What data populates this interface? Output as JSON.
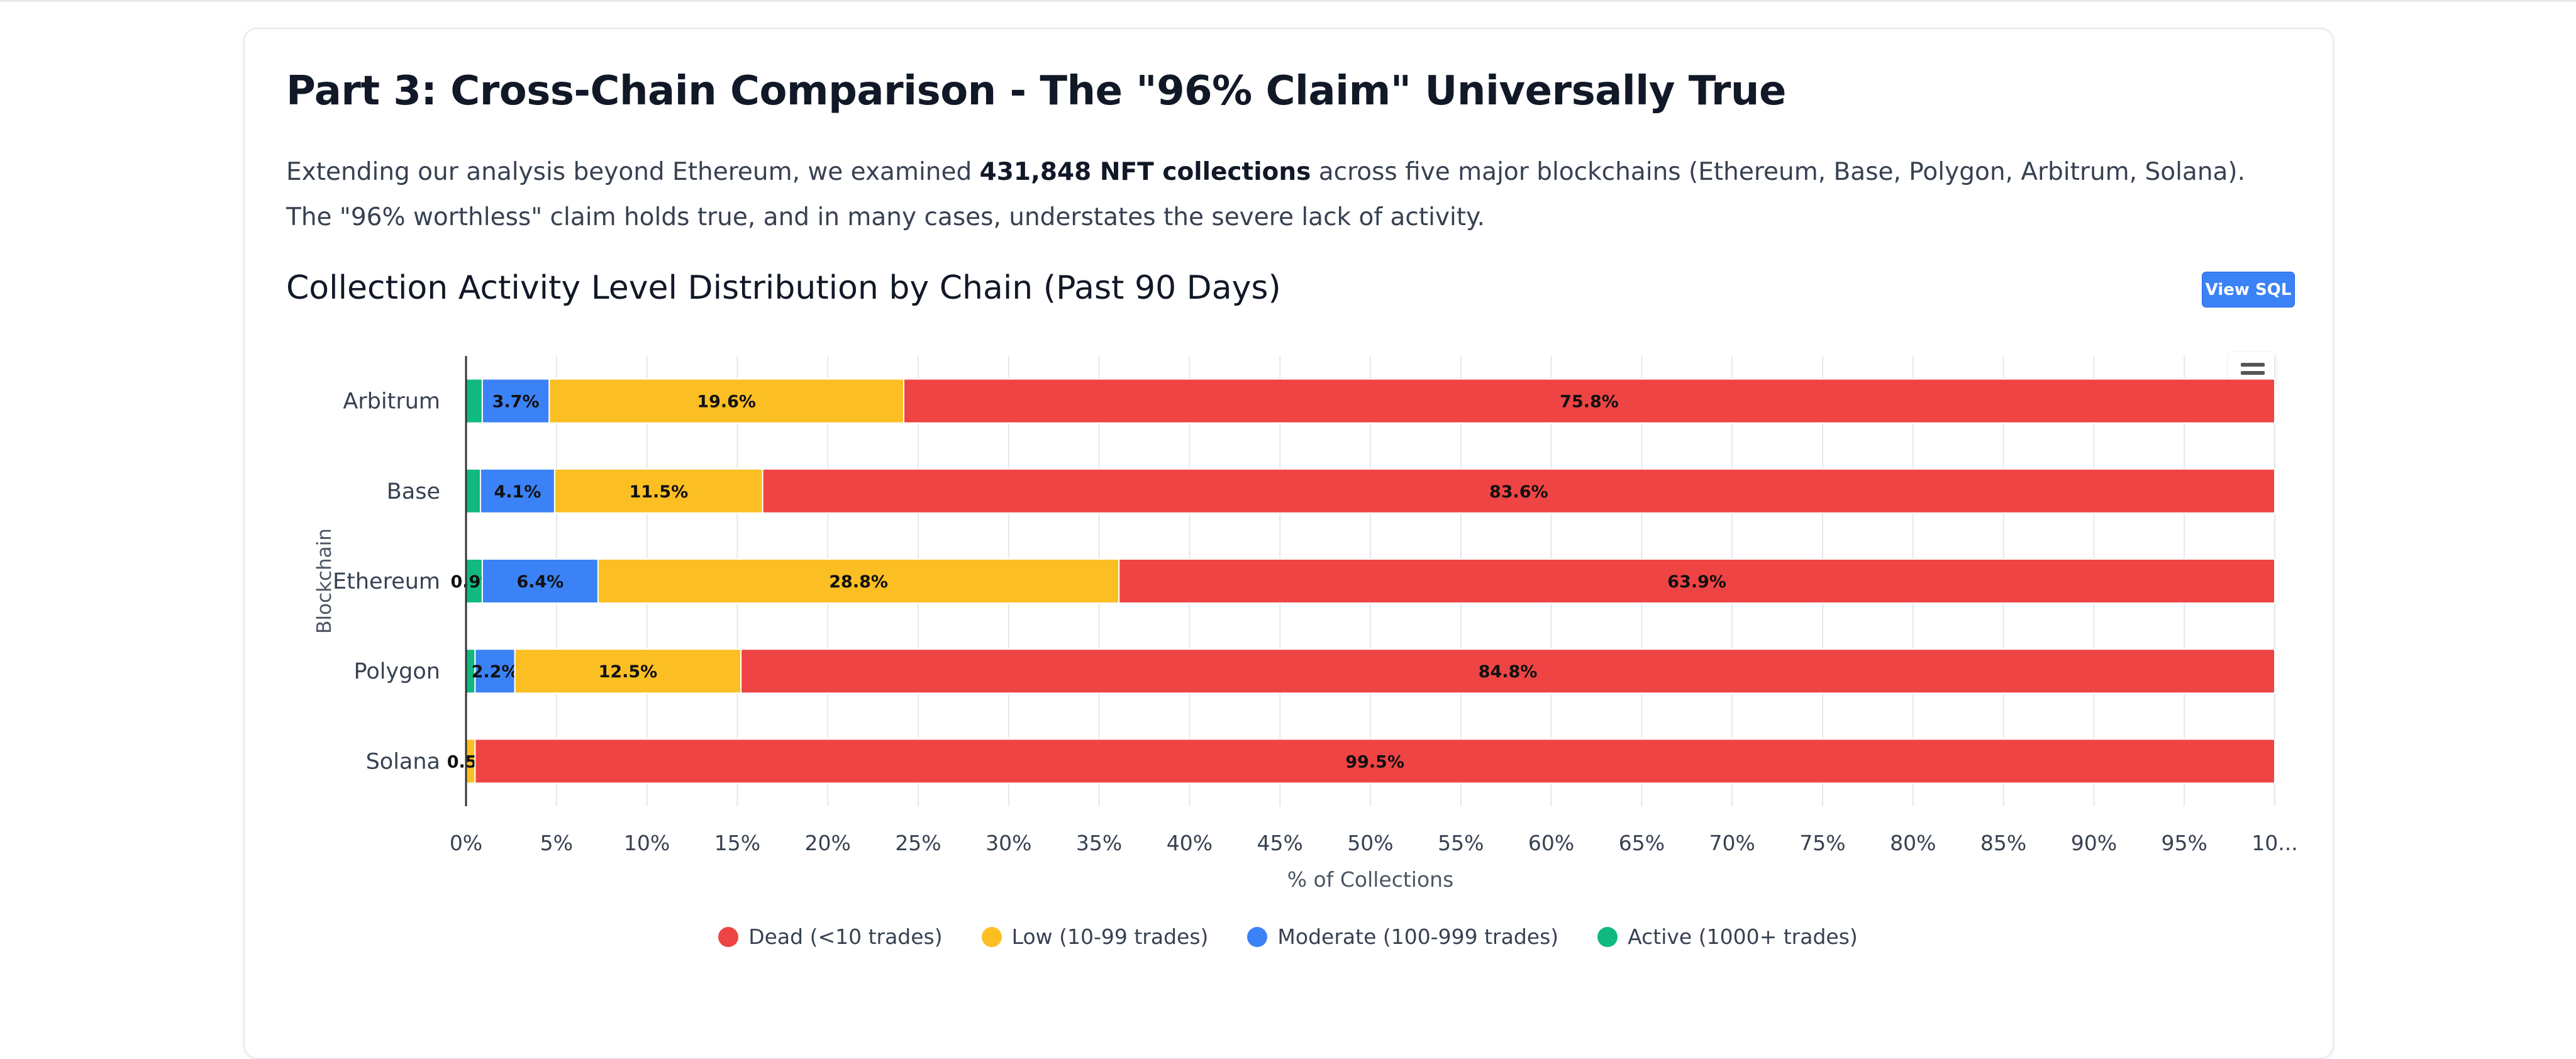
{
  "section": {
    "title": "Part 3: Cross-Chain Comparison - The \"96% Claim\" Universally True",
    "intro_before": "Extending our analysis beyond Ethereum, we examined ",
    "intro_bold": "431,848 NFT collections",
    "intro_after": " across five major blockchains (Ethereum, Base, Polygon, Arbitrum, Solana). The \"96% worthless\" claim holds true, and in many cases, understates the severe lack of activity."
  },
  "chart_header": {
    "title": "Collection Activity Level Distribution by Chain (Past 90 Days)",
    "view_sql_label": "View SQL",
    "menu_icon": "hamburger-menu-icon"
  },
  "chart_data": {
    "type": "bar",
    "orientation": "horizontal",
    "stacked": true,
    "percent": true,
    "title": "Collection Activity Level Distribution by Chain (Past 90 Days)",
    "xlabel": "% of Collections",
    "ylabel": "Blockchain",
    "xlim": [
      0,
      100
    ],
    "x_ticks": [
      "0%",
      "5%",
      "10%",
      "15%",
      "20%",
      "25%",
      "30%",
      "35%",
      "40%",
      "45%",
      "50%",
      "55%",
      "60%",
      "65%",
      "70%",
      "75%",
      "80%",
      "85%",
      "90%",
      "95%",
      "10..."
    ],
    "grid": true,
    "legend_position": "bottom-center",
    "categories": [
      "Arbitrum",
      "Base",
      "Ethereum",
      "Polygon",
      "Solana"
    ],
    "series": [
      {
        "name": "Active (1000+ trades)",
        "color": "#10b981",
        "values": [
          0.9,
          0.8,
          0.9,
          0.5,
          0.0
        ],
        "labels": [
          "",
          "",
          "0.9%",
          "",
          ""
        ]
      },
      {
        "name": "Moderate (100-999 trades)",
        "color": "#3b82f6",
        "values": [
          3.7,
          4.1,
          6.4,
          2.2,
          0.0
        ],
        "labels": [
          "3.7%",
          "4.1%",
          "6.4%",
          "2.2%",
          ""
        ]
      },
      {
        "name": "Low (10-99 trades)",
        "color": "#fbbf24",
        "values": [
          19.6,
          11.5,
          28.8,
          12.5,
          0.5
        ],
        "labels": [
          "19.6%",
          "11.5%",
          "28.8%",
          "12.5%",
          "0.5%"
        ]
      },
      {
        "name": "Dead (<10 trades)",
        "color": "#ef4444",
        "values": [
          75.8,
          83.6,
          63.9,
          84.8,
          99.5
        ],
        "labels": [
          "75.8%",
          "83.6%",
          "63.9%",
          "84.8%",
          "99.5%"
        ]
      }
    ],
    "legend_order": [
      "Dead (<10 trades)",
      "Low (10-99 trades)",
      "Moderate (100-999 trades)",
      "Active (1000+ trades)"
    ]
  }
}
